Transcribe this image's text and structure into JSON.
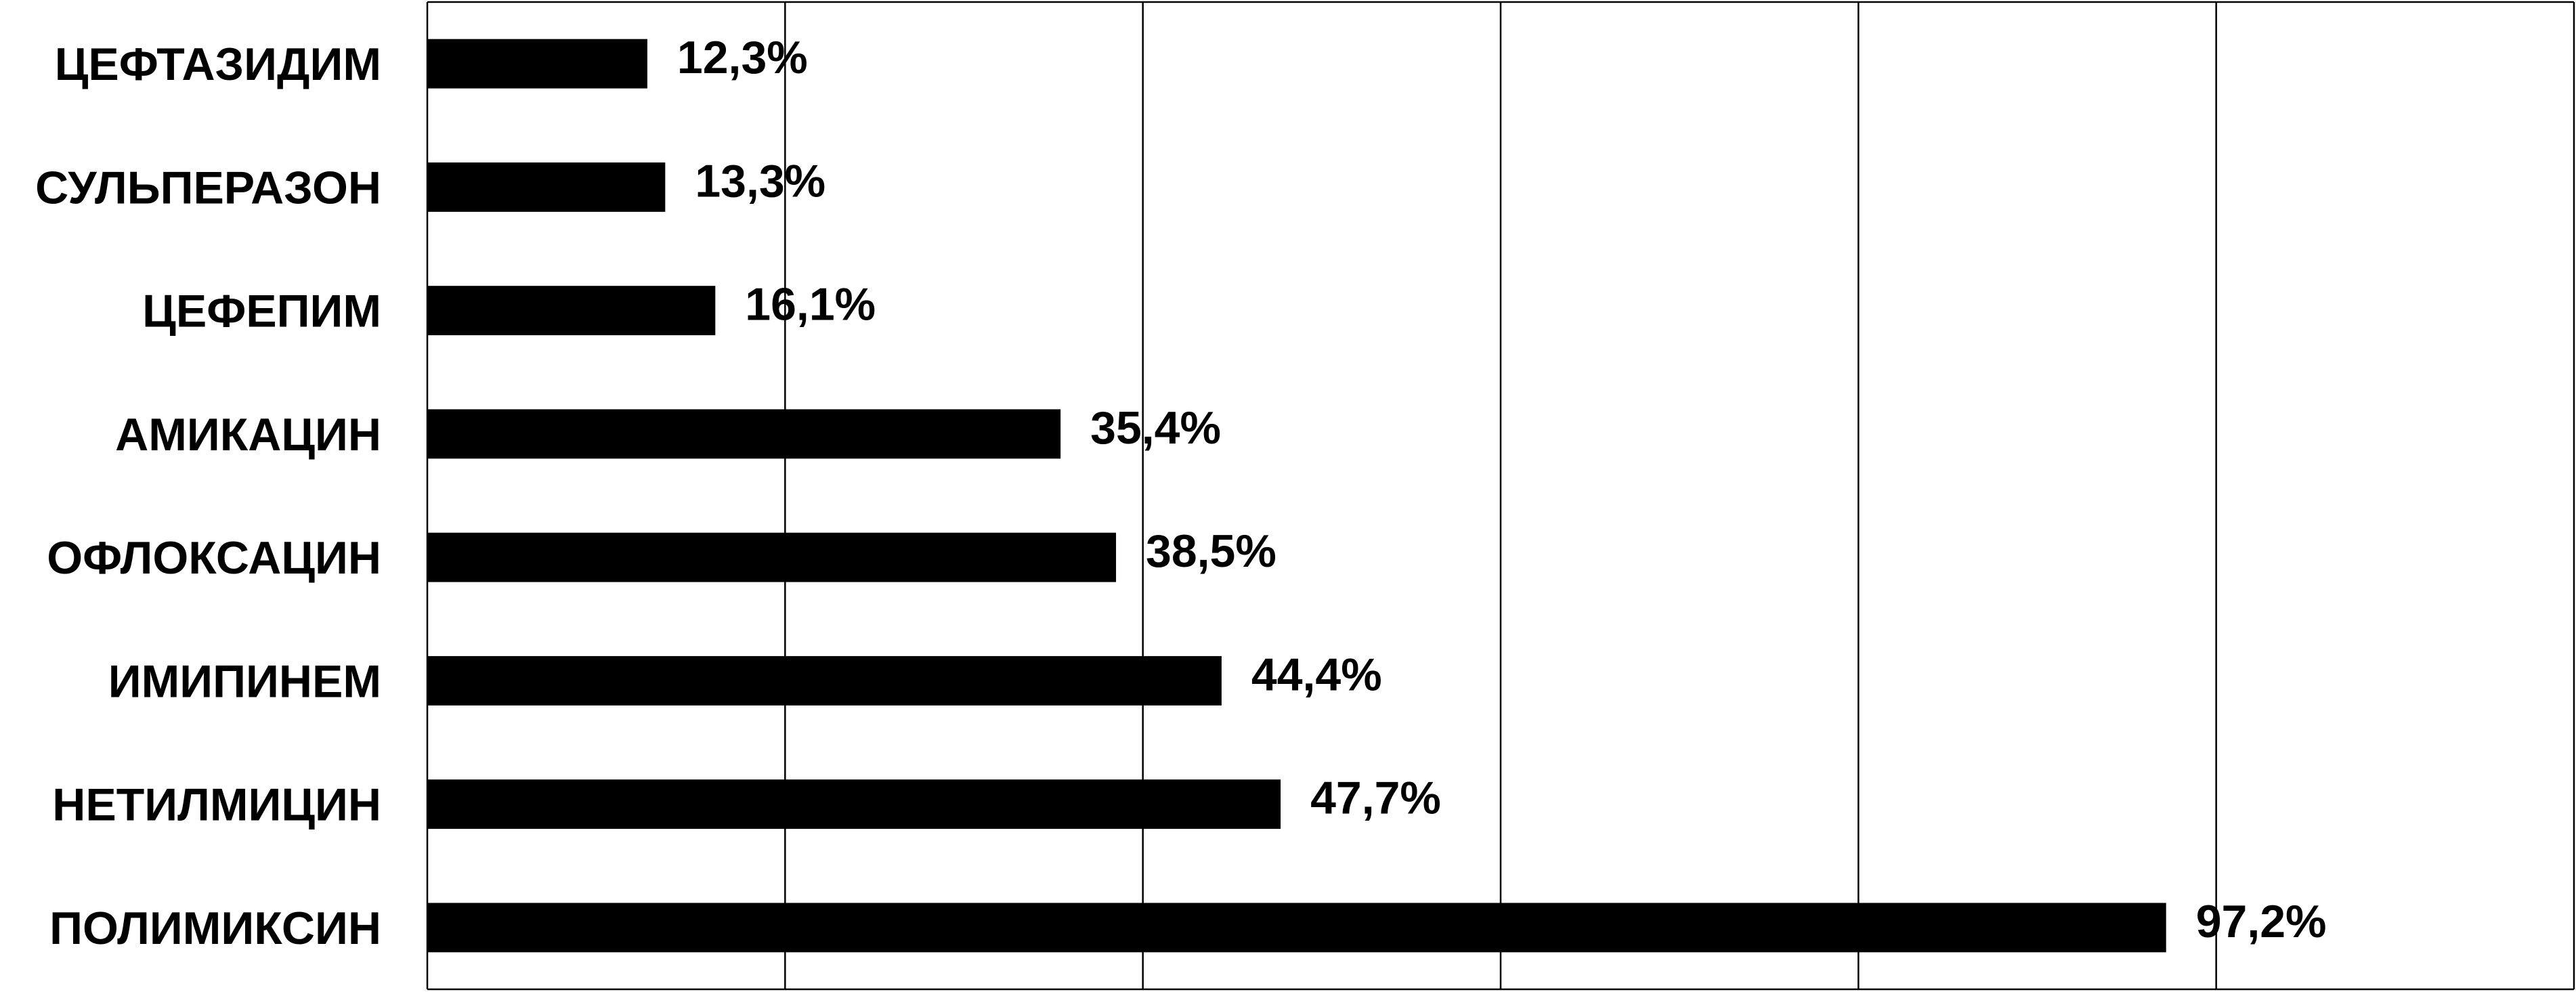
{
  "chart_data": {
    "type": "hbar",
    "categories": [
      "ЦЕФТАЗИДИМ",
      "СУЛЬПЕРАЗОН",
      "ЦЕФЕПИМ",
      "АМИКАЦИН",
      "ОФЛОКСАЦИН",
      "ИМИПИНЕМ",
      "НЕТИЛМИЦИН",
      "ПОЛИМИКСИН"
    ],
    "values": [
      12.3,
      13.3,
      16.1,
      35.4,
      38.5,
      44.4,
      47.7,
      97.2
    ],
    "value_labels": [
      "12,3%",
      "13,3%",
      "16,1%",
      "35,4%",
      "38,5%",
      "44,4%",
      "47,7%",
      "97,2%"
    ],
    "color": "#000000",
    "xlim": [
      0,
      120
    ],
    "xticks": [
      0,
      20,
      40,
      60,
      80,
      100,
      120
    ],
    "grid": true
  }
}
